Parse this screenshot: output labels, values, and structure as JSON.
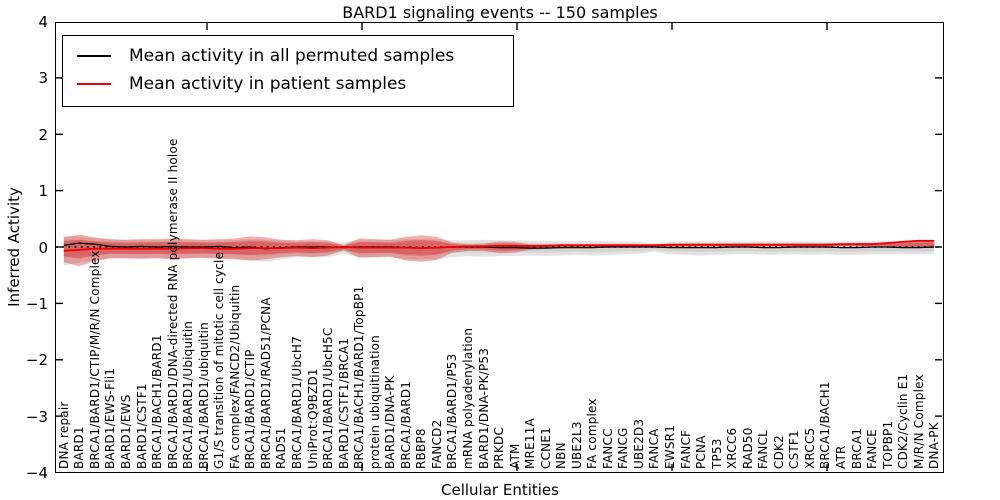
{
  "title": "BARD1 signaling events -- 150 samples",
  "axes": {
    "xlabel": "Cellular Entities",
    "ylabel": "Inferred Activity",
    "ylim": [
      -4,
      4
    ],
    "yticks": [
      "4",
      "3",
      "2",
      "1",
      "0",
      "−1",
      "−2",
      "−3",
      "−4"
    ],
    "ytick_values": [
      4,
      3,
      2,
      1,
      0,
      -1,
      -2,
      -3,
      -4
    ]
  },
  "legend": {
    "entries": [
      {
        "label": "Mean activity in all permuted samples",
        "color": "#000000"
      },
      {
        "label": "Mean activity in patient samples",
        "color": "#ee0000"
      }
    ]
  },
  "colors": {
    "patient_line": "#ee0000",
    "permuted_line": "#000000",
    "patient_band": "#dd1111",
    "permuted_band": "#9a9a9a",
    "zero_line": "#000000",
    "frame": "#000000"
  },
  "chart_data": {
    "type": "area",
    "title": "BARD1 signaling events -- 150 samples",
    "xlabel": "Cellular Entities",
    "ylabel": "Inferred Activity",
    "ylim": [
      -4,
      4
    ],
    "grid": false,
    "legend_position": "upper left",
    "inner_band_factor": 0.6,
    "categories": [
      "DNA repair",
      "BARD1",
      "BRCA1/BARD1/CTIP/M/R/N Complex",
      "BARD1/EWS-Fli1",
      "BARD1/EWS",
      "BARD1/CSTF1",
      "BRCA1/BACH1/BARD1",
      "BRCA1/BARD1/DNA-directed RNA polymerase II holoe",
      "BRCA1/BARD1/Ubiquitin",
      "BRCA1/BARD1/ubiquitin",
      "G1/S transition of mitotic cell cycle",
      "FA complex/FANCD2/Ubiquitin",
      "BRCA1/BARD1/CTIP",
      "BRCA1/BARD1/RAD51/PCNA",
      "RAD51",
      "BRCA1/BARD1/UbcH7",
      "UniProt:Q9BZD1",
      "BRCA1/BARD1/UbcH5C",
      "BARD1/CSTF1/BRCA1",
      "BRCA1/BACH1/BARD1/TopBP1",
      "protein ubiquitination",
      "BARD1/DNA-PK",
      "BRCA1/BARD1",
      "RBBP8",
      "FANCD2",
      "BRCA1/BARD1/P53",
      "mRNA polyadenylation",
      "BARD1/DNA-PK/P53",
      "PRKDC",
      "ATM",
      "MRE11A",
      "CCNE1",
      "NBN",
      "UBE2L3",
      "FA complex",
      "FANCC",
      "FANCG",
      "UBE2D3",
      "FANCA",
      "EWSR1",
      "FANCF",
      "PCNA",
      "TP53",
      "XRCC6",
      "RAD50",
      "FANCL",
      "CDK2",
      "CSTF1",
      "XRCC5",
      "BRCA1/BACH1",
      "ATR",
      "BRCA1",
      "FANCE",
      "TOPBP1",
      "CDK2/Cyclin E1",
      "M/R/N Complex",
      "DNA-PK"
    ],
    "series": [
      {
        "name": "permuted_band",
        "kind": "band",
        "upper": [
          0.2,
          0.18,
          0.15,
          0.13,
          0.12,
          0.12,
          0.12,
          0.12,
          0.12,
          0.12,
          0.12,
          0.12,
          0.14,
          0.13,
          0.12,
          0.1,
          0.1,
          0.1,
          0.08,
          0.12,
          0.12,
          0.12,
          0.14,
          0.14,
          0.14,
          0.12,
          0.12,
          0.13,
          0.12,
          0.12,
          0.11,
          0.11,
          0.1,
          0.1,
          0.11,
          0.1,
          0.1,
          0.09,
          0.06,
          0.09,
          0.1,
          0.1,
          0.1,
          0.1,
          0.09,
          0.1,
          0.1,
          0.1,
          0.1,
          0.09,
          0.1,
          0.1,
          0.1,
          0.1,
          0.11,
          0.12,
          0.12
        ],
        "lower": [
          -0.33,
          -0.28,
          -0.24,
          -0.2,
          -0.2,
          -0.2,
          -0.2,
          -0.2,
          -0.2,
          -0.2,
          -0.2,
          -0.2,
          -0.24,
          -0.26,
          -0.22,
          -0.18,
          -0.18,
          -0.18,
          -0.12,
          -0.18,
          -0.18,
          -0.18,
          -0.22,
          -0.22,
          -0.22,
          -0.18,
          -0.16,
          -0.17,
          -0.16,
          -0.16,
          -0.15,
          -0.16,
          -0.15,
          -0.14,
          -0.15,
          -0.14,
          -0.13,
          -0.12,
          -0.08,
          -0.13,
          -0.14,
          -0.15,
          -0.14,
          -0.13,
          -0.12,
          -0.14,
          -0.14,
          -0.13,
          -0.14,
          -0.13,
          -0.14,
          -0.14,
          -0.13,
          -0.13,
          -0.13,
          -0.13,
          -0.12
        ]
      },
      {
        "name": "patient_band",
        "kind": "band",
        "upper": [
          0.17,
          0.22,
          0.17,
          0.14,
          0.13,
          0.14,
          0.14,
          0.15,
          0.14,
          0.13,
          0.14,
          0.15,
          0.19,
          0.17,
          0.13,
          0.12,
          0.14,
          0.12,
          0.03,
          0.15,
          0.14,
          0.13,
          0.18,
          0.21,
          0.18,
          0.08,
          0.05,
          0.06,
          0.1,
          0.09,
          0.05,
          0.05,
          0.05,
          0.05,
          0.05,
          0.05,
          0.05,
          0.05,
          0.05,
          0.05,
          0.06,
          0.06,
          0.06,
          0.06,
          0.06,
          0.06,
          0.06,
          0.06,
          0.06,
          0.06,
          0.06,
          0.07,
          0.07,
          0.09,
          0.11,
          0.13,
          0.12
        ],
        "lower": [
          -0.27,
          -0.34,
          -0.25,
          -0.2,
          -0.2,
          -0.21,
          -0.2,
          -0.22,
          -0.2,
          -0.19,
          -0.21,
          -0.22,
          -0.24,
          -0.22,
          -0.18,
          -0.16,
          -0.18,
          -0.15,
          -0.06,
          -0.19,
          -0.18,
          -0.17,
          -0.24,
          -0.26,
          -0.23,
          -0.1,
          -0.07,
          -0.07,
          -0.11,
          -0.1,
          -0.05,
          -0.03,
          -0.02,
          -0.02,
          -0.02,
          -0.01,
          -0.01,
          -0.01,
          -0.01,
          -0.01,
          0.01,
          0.01,
          0.01,
          0.01,
          0.01,
          0.01,
          0.01,
          0.01,
          0.01,
          0.01,
          0.02,
          0.02,
          0.02,
          0.02,
          0.0,
          -0.01,
          -0.01
        ]
      },
      {
        "name": "Mean activity in all permuted samples",
        "kind": "line",
        "values": [
          0.03,
          0.07,
          0.05,
          0.01,
          0.0,
          0.01,
          0.0,
          0.01,
          0.0,
          0.0,
          0.01,
          -0.01,
          0.0,
          -0.03,
          -0.01,
          0.0,
          0.0,
          0.0,
          -0.01,
          0.0,
          0.0,
          0.0,
          -0.01,
          -0.02,
          -0.01,
          0.0,
          0.0,
          0.0,
          -0.01,
          -0.01,
          -0.02,
          -0.02,
          -0.01,
          -0.01,
          -0.01,
          0.0,
          0.0,
          0.0,
          0.0,
          -0.01,
          -0.01,
          -0.01,
          -0.01,
          0.0,
          0.0,
          -0.01,
          -0.01,
          0.0,
          0.0,
          0.0,
          -0.01,
          -0.01,
          0.0,
          0.0,
          -0.01,
          -0.01,
          0.0
        ]
      },
      {
        "name": "Mean activity in patient samples",
        "kind": "line",
        "values": [
          -0.07,
          -0.05,
          -0.03,
          -0.03,
          -0.03,
          -0.03,
          -0.03,
          -0.03,
          -0.02,
          -0.02,
          -0.03,
          -0.03,
          -0.02,
          -0.02,
          -0.02,
          -0.01,
          -0.02,
          -0.01,
          0.0,
          -0.01,
          -0.01,
          -0.01,
          -0.01,
          -0.02,
          -0.01,
          0.0,
          0.01,
          0.01,
          0.02,
          0.02,
          0.02,
          0.02,
          0.03,
          0.03,
          0.03,
          0.03,
          0.03,
          0.03,
          0.03,
          0.04,
          0.04,
          0.04,
          0.04,
          0.04,
          0.04,
          0.04,
          0.04,
          0.04,
          0.04,
          0.04,
          0.05,
          0.05,
          0.05,
          0.07,
          0.09,
          0.11,
          0.11
        ]
      },
      {
        "name": "zero_reference",
        "kind": "dotted_hline",
        "value": 0
      }
    ]
  }
}
